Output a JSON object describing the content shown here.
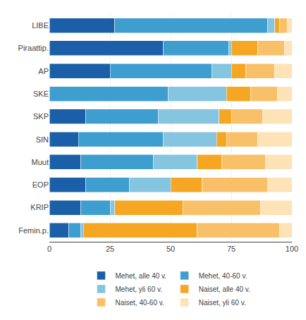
{
  "chart_data": {
    "type": "bar",
    "orientation": "horizontal",
    "stacked": true,
    "categories": [
      "LIBE",
      "Piraattip.",
      "AP",
      "SKE",
      "SKP",
      "SIN",
      "Muut",
      "EOP",
      "KRIP",
      "Femin.p."
    ],
    "series": [
      {
        "name": "Mehet, alle 40 v.",
        "color": "#1a5fa8",
        "values": [
          27,
          47,
          25,
          0,
          15,
          12,
          13,
          15,
          13,
          8
        ]
      },
      {
        "name": "Mehet, 40-60 v.",
        "color": "#3d9ecf",
        "values": [
          63,
          27,
          42,
          49,
          30,
          35,
          30,
          18,
          12,
          5
        ]
      },
      {
        "name": "Mehet, yli 60 v.",
        "color": "#85c5e0",
        "values": [
          3,
          1,
          8,
          24,
          25,
          22,
          18,
          17,
          2,
          1
        ]
      },
      {
        "name": "Naiset, alle 40 v.",
        "color": "#f5a623",
        "values": [
          2,
          11,
          6,
          10,
          5,
          4,
          10,
          13,
          28,
          47
        ]
      },
      {
        "name": "Naiset, 40-60 v.",
        "color": "#f9c06a",
        "values": [
          3,
          11,
          12,
          11,
          13,
          13,
          18,
          27,
          32,
          34
        ]
      },
      {
        "name": "Naiset, yli 60 v.",
        "color": "#fde3b5",
        "values": [
          2,
          3,
          7,
          6,
          12,
          14,
          11,
          10,
          13,
          5
        ]
      }
    ],
    "xlim": [
      0,
      100
    ],
    "xticks": [
      0,
      25,
      50,
      75,
      100
    ],
    "grid": true,
    "legend": "bottom"
  }
}
